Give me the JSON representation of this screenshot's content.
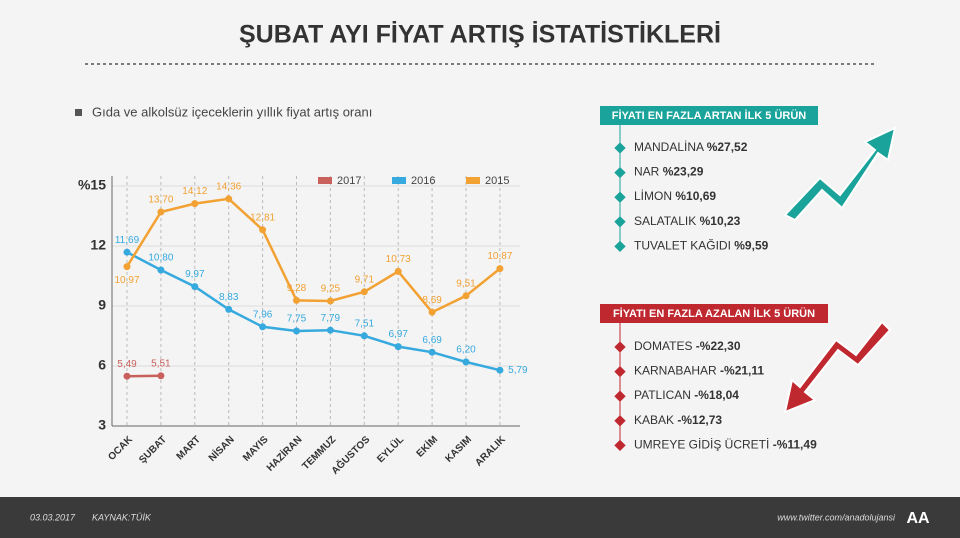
{
  "chart_data": {
    "type": "line",
    "title": "ŞUBAT AYI FİYAT ARTIŞ İSTATİSTİKLERİ",
    "subtitle": "Gıda ve alkolsüz içeceklerin yıllık fiyat artış oranı",
    "categories": [
      "OCAK",
      "ŞUBAT",
      "MART",
      "NİSAN",
      "MAYIS",
      "HAZİRAN",
      "TEMMUZ",
      "AĞUSTOS",
      "EYLÜL",
      "EKİM",
      "KASIM",
      "ARALIK"
    ],
    "series": [
      {
        "name": "2017",
        "color": "#c8605c",
        "values": [
          5.49,
          5.51,
          null,
          null,
          null,
          null,
          null,
          null,
          null,
          null,
          null,
          null
        ],
        "value_labels": [
          "5,49",
          "5,51",
          null,
          null,
          null,
          null,
          null,
          null,
          null,
          null,
          null,
          null
        ]
      },
      {
        "name": "2016",
        "color": "#36a9de",
        "values": [
          11.69,
          10.8,
          9.97,
          8.83,
          7.96,
          7.75,
          7.79,
          7.51,
          6.97,
          6.69,
          6.2,
          5.79
        ],
        "value_labels": [
          "11,69",
          "10,80",
          "9,97",
          "8,83",
          "7,96",
          "7,75",
          "7,79",
          "7,51",
          "6,97",
          "6,69",
          "6,20",
          "5,79"
        ]
      },
      {
        "name": "2015",
        "color": "#f2a133",
        "values": [
          10.97,
          13.7,
          14.12,
          14.36,
          12.81,
          9.28,
          9.25,
          9.71,
          10.73,
          8.69,
          9.51,
          10.87
        ],
        "value_labels": [
          "10,97",
          "13,70",
          "14,12",
          "14,36",
          "12,81",
          "9,28",
          "9,25",
          "9,71",
          "10,73",
          "8,69",
          "9,51",
          "10,87"
        ]
      }
    ],
    "ylim": [
      3,
      15
    ],
    "yticks": [
      3,
      6,
      9,
      {
        "value": 12,
        "label": "12"
      },
      {
        "value": 15,
        "label": "%15"
      }
    ],
    "grid": true
  },
  "increase": {
    "title": "FİYATI EN FAZLA ARTAN İLK 5 ÜRÜN",
    "items": [
      {
        "name": "MANDALİNA",
        "value": "%27,52"
      },
      {
        "name": "NAR",
        "value": "%23,29"
      },
      {
        "name": "LİMON",
        "value": "%10,69"
      },
      {
        "name": "SALATALIK",
        "value": "%10,23"
      },
      {
        "name": "TUVALET KAĞIDI",
        "value": "%9,59"
      }
    ]
  },
  "decrease": {
    "title": "FİYATI EN FAZLA AZALAN İLK 5 ÜRÜN",
    "items": [
      {
        "name": "DOMATES",
        "value": "-%22,30"
      },
      {
        "name": "KARNABAHAR",
        "value": "-%21,11"
      },
      {
        "name": "PATLICAN",
        "value": "-%18,04"
      },
      {
        "name": "KABAK",
        "value": "-%12,73"
      },
      {
        "name": "UMREYE GİDİŞ ÜCRETİ",
        "value": "-%11,49"
      }
    ]
  },
  "footer": {
    "date": "03.03.2017",
    "source": "KAYNAK:TÜİK",
    "url": "www.twitter.com/anadolujansi",
    "logo": "AA"
  }
}
